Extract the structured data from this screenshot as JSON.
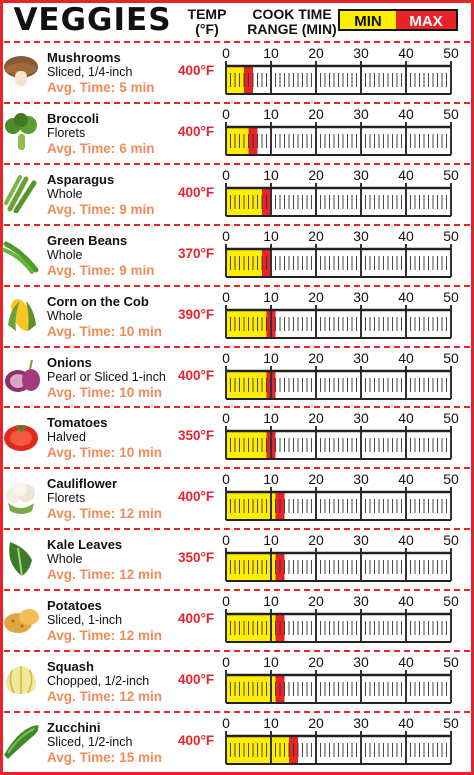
{
  "header": {
    "title": "VEGGIES",
    "temp_line1": "TEMP",
    "temp_line2": "(°F)",
    "cook_line1": "COOK TIME",
    "cook_line2": "RANGE (MIN)",
    "legend_min": "MIN",
    "legend_max": "MAX"
  },
  "colors": {
    "min": "#ffee00",
    "max": "#e8242a",
    "accent": "#e8242a",
    "avg_text": "#f08c5a"
  },
  "chart_data": {
    "type": "bar",
    "xlim": [
      0,
      50
    ],
    "x_ticks": [
      0,
      10,
      20,
      30,
      40,
      50
    ],
    "x_tick_labels": [
      "0",
      "10",
      "20",
      "30",
      "40",
      "50"
    ],
    "series": [
      {
        "name": "MIN",
        "values": [
          4,
          5,
          8,
          8,
          9,
          9,
          9,
          11,
          11,
          11,
          11,
          14
        ]
      },
      {
        "name": "MAX",
        "values": [
          6,
          7,
          10,
          10,
          11,
          11,
          11,
          13,
          13,
          13,
          13,
          16
        ]
      }
    ],
    "items": [
      {
        "name": "Mushrooms",
        "cut": "Sliced, 1/4-inch",
        "avg_label": "Avg. Time:",
        "avg": "5 min",
        "temp": "400°F",
        "icon": "mushroom-icon",
        "min": 4,
        "max": 6
      },
      {
        "name": "Broccoli",
        "cut": "Florets",
        "avg_label": "Avg. Time:",
        "avg": "6 min",
        "temp": "400°F",
        "icon": "broccoli-icon",
        "min": 5,
        "max": 7
      },
      {
        "name": "Asparagus",
        "cut": "Whole",
        "avg_label": "Avg. Time:",
        "avg": "9 min",
        "temp": "400°F",
        "icon": "asparagus-icon",
        "min": 8,
        "max": 10
      },
      {
        "name": "Green Beans",
        "cut": "Whole",
        "avg_label": "Avg. Time:",
        "avg": "9 min",
        "temp": "370°F",
        "icon": "green-beans-icon",
        "min": 8,
        "max": 10
      },
      {
        "name": "Corn on the Cob",
        "cut": "Whole",
        "avg_label": "Avg. Time:",
        "avg": "10 min",
        "temp": "390°F",
        "icon": "corn-icon",
        "min": 9,
        "max": 11
      },
      {
        "name": "Onions",
        "cut": "Pearl or Sliced 1-inch",
        "avg_label": "Avg. Time:",
        "avg": "10 min",
        "temp": "400°F",
        "icon": "onion-icon",
        "min": 9,
        "max": 11
      },
      {
        "name": "Tomatoes",
        "cut": "Halved",
        "avg_label": "Avg. Time:",
        "avg": "10 min",
        "temp": "350°F",
        "icon": "tomato-icon",
        "min": 9,
        "max": 11
      },
      {
        "name": "Cauliflower",
        "cut": "Florets",
        "avg_label": "Avg. Time:",
        "avg": "12 min",
        "temp": "400°F",
        "icon": "cauliflower-icon",
        "min": 11,
        "max": 13
      },
      {
        "name": "Kale Leaves",
        "cut": "Whole",
        "avg_label": "Avg. Time:",
        "avg": "12 min",
        "temp": "350°F",
        "icon": "kale-icon",
        "min": 11,
        "max": 13
      },
      {
        "name": "Potatoes",
        "cut": "Sliced, 1-inch",
        "avg_label": "Avg. Time:",
        "avg": "12 min",
        "temp": "400°F",
        "icon": "potato-icon",
        "min": 11,
        "max": 13
      },
      {
        "name": "Squash",
        "cut": "Chopped, 1/2-inch",
        "avg_label": "Avg. Time:",
        "avg": "12 min",
        "temp": "400°F",
        "icon": "squash-icon",
        "min": 11,
        "max": 13
      },
      {
        "name": "Zucchini",
        "cut": "Sliced, 1/2-inch",
        "avg_label": "Avg. Time:",
        "avg": "15 min",
        "temp": "400°F",
        "icon": "zucchini-icon",
        "min": 14,
        "max": 16
      }
    ]
  }
}
